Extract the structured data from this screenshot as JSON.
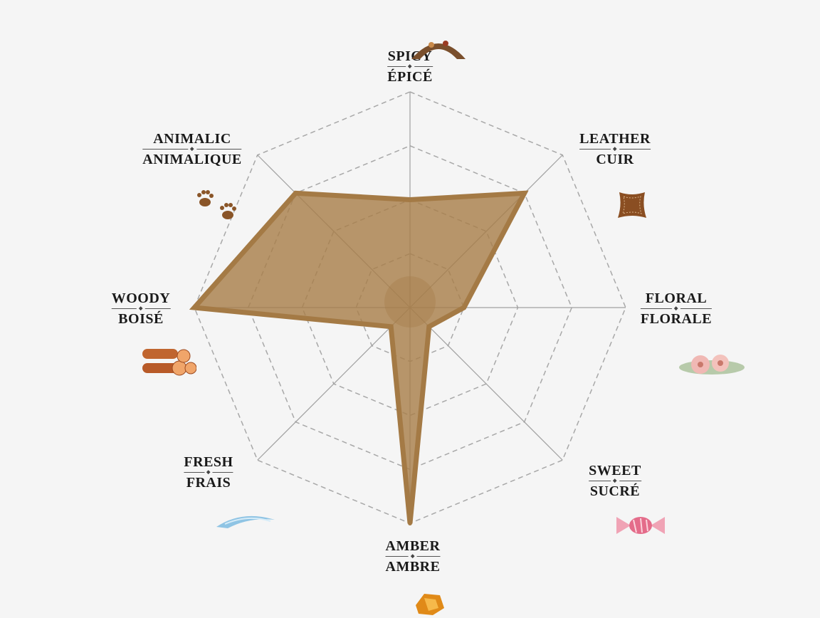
{
  "chart_data": {
    "type": "radar",
    "axes": [
      {
        "en": "SPICY",
        "fr": "ÉPICÉ",
        "value": 0.5,
        "icon": "spices-icon"
      },
      {
        "en": "LEATHER",
        "fr": "CUIR",
        "value": 0.75,
        "icon": "leather-hide-icon"
      },
      {
        "en": "FLORAL",
        "fr": "FLORALE",
        "value": 0.25,
        "icon": "flowers-icon"
      },
      {
        "en": "SWEET",
        "fr": "SUCRÉ",
        "value": 0.125,
        "icon": "candy-icon"
      },
      {
        "en": "AMBER",
        "fr": "AMBRE",
        "value": 1.0,
        "icon": "amber-stone-icon"
      },
      {
        "en": "FRESH",
        "fr": "FRAIS",
        "value": 0.125,
        "icon": "wind-icon"
      },
      {
        "en": "WOODY",
        "fr": "BOISÉ",
        "value": 1.0,
        "icon": "logs-icon"
      },
      {
        "en": "ANIMALIC",
        "fr": "ANIMALIQUE",
        "value": 0.75,
        "icon": "paw-prints-icon"
      }
    ],
    "range": [
      0,
      1
    ],
    "rings": [
      0.25,
      0.5,
      0.75,
      1.0
    ],
    "grid": true,
    "fill_color": "#a87d47",
    "stroke_color": "#a47a45",
    "legend": "none"
  }
}
